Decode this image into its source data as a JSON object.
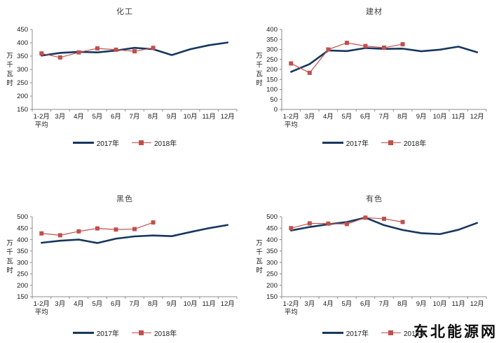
{
  "watermark": "东北能源网",
  "ylabel": "万千瓦时",
  "category_first_extra": "平均",
  "colors": {
    "line2017": "#17375E",
    "line2018": "#C0504D",
    "axis": "#8c8c8c",
    "tick_text": "#1a1a1a",
    "title_text": "#3f3f3f"
  },
  "legend": {
    "label2017": "2017年",
    "label2018": "2018年",
    "position": "bottom"
  },
  "chart_data": [
    {
      "type": "line",
      "title": "化工",
      "xlabel": "",
      "ylabel": "万千瓦时",
      "ylim": [
        150,
        450
      ],
      "ytick_step": 50,
      "grid": false,
      "legend_position": "bottom",
      "categories": [
        "1-2月",
        "3月",
        "4月",
        "5月",
        "6月",
        "7月",
        "8月",
        "9月",
        "10月",
        "11月",
        "12月"
      ],
      "series": [
        {
          "name": "2017年",
          "values": [
            352,
            362,
            366,
            364,
            371,
            381,
            376,
            354,
            376,
            391,
            401
          ]
        },
        {
          "name": "2018年",
          "values": [
            360,
            345,
            364,
            379,
            374,
            368,
            381
          ]
        }
      ]
    },
    {
      "type": "line",
      "title": "建材",
      "xlabel": "",
      "ylabel": "万千瓦时",
      "ylim": [
        0,
        400
      ],
      "ytick_step": 50,
      "grid": false,
      "legend_position": "bottom",
      "categories": [
        "1-2月",
        "3月",
        "4月",
        "5月",
        "6月",
        "7月",
        "8月",
        "9月",
        "10月",
        "11月",
        "12月"
      ],
      "series": [
        {
          "name": "2017年",
          "values": [
            188,
            227,
            295,
            292,
            307,
            303,
            304,
            291,
            299,
            314,
            286
          ]
        },
        {
          "name": "2018年",
          "values": [
            230,
            183,
            300,
            333,
            317,
            309,
            326
          ]
        }
      ]
    },
    {
      "type": "line",
      "title": "黑色",
      "xlabel": "",
      "ylabel": "万千瓦时",
      "ylim": [
        150,
        500
      ],
      "ytick_step": 50,
      "grid": false,
      "legend_position": "bottom",
      "categories": [
        "1-2月",
        "3月",
        "4月",
        "5月",
        "6月",
        "7月",
        "8月",
        "9月",
        "10月",
        "11月",
        "12月"
      ],
      "series": [
        {
          "name": "2017年",
          "values": [
            386,
            395,
            400,
            385,
            404,
            414,
            418,
            415,
            433,
            450,
            464
          ]
        },
        {
          "name": "2018年",
          "values": [
            427,
            419,
            436,
            449,
            444,
            446,
            475
          ]
        }
      ]
    },
    {
      "type": "line",
      "title": "有色",
      "xlabel": "",
      "ylabel": "万千瓦时",
      "ylim": [
        150,
        500
      ],
      "ytick_step": 50,
      "grid": false,
      "legend_position": "bottom",
      "categories": [
        "1-2月",
        "3月",
        "4月",
        "5月",
        "6月",
        "7月",
        "8月",
        "9月",
        "10月",
        "11月",
        "12月"
      ],
      "series": [
        {
          "name": "2017年",
          "values": [
            440,
            455,
            467,
            477,
            496,
            463,
            442,
            428,
            424,
            443,
            473
          ]
        },
        {
          "name": "2018年",
          "values": [
            450,
            471,
            470,
            468,
            496,
            491,
            477
          ]
        }
      ]
    }
  ]
}
